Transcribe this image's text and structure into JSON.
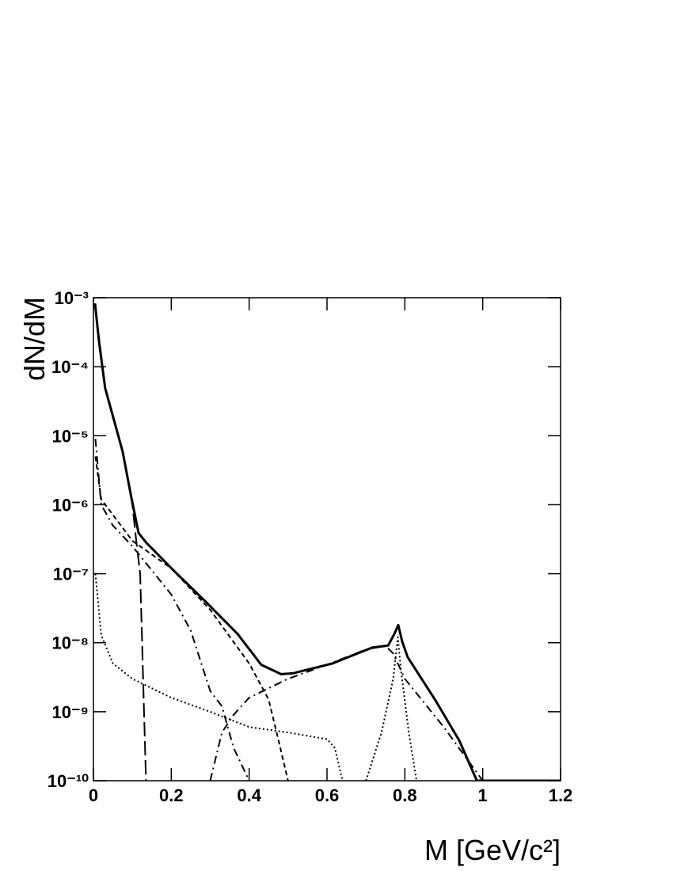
{
  "chart_data": {
    "type": "line",
    "x_label": "M [GeV/c²]",
    "y_label": "dN/dM",
    "log_y": true,
    "xlim": [
      0,
      1.2
    ],
    "ylim": [
      1e-10,
      0.001
    ],
    "xticks": [
      0,
      0.2,
      0.4,
      0.6,
      0.8,
      1,
      1.2
    ],
    "yticks": [
      {
        "value": 1e-10,
        "label": "10⁻¹⁰"
      },
      {
        "value": 1e-09,
        "label": "10⁻⁹"
      },
      {
        "value": 1e-08,
        "label": "10⁻⁸"
      },
      {
        "value": 1e-07,
        "label": "10⁻⁷"
      },
      {
        "value": 1e-06,
        "label": "10⁻⁶"
      },
      {
        "value": 1e-05,
        "label": "10⁻⁵"
      },
      {
        "value": 0.0001,
        "label": "10⁻⁴"
      },
      {
        "value": 0.001,
        "label": "10⁻³"
      }
    ],
    "series": [
      {
        "color": "#000000",
        "dash": "solid",
        "width": 3,
        "x": [
          0.004,
          0.014,
          0.03,
          0.075,
          0.096,
          0.116,
          0.136,
          0.207,
          0.289,
          0.37,
          0.431,
          0.482,
          0.512,
          0.614,
          0.716,
          0.757,
          0.773,
          0.783,
          0.793,
          0.807,
          0.879,
          0.94,
          0.985,
          1.2
        ],
        "values": [
          0.00083,
          0.00024,
          4.9e-05,
          5.9e-06,
          1.4e-06,
          3.9e-07,
          2.8e-07,
          1.1e-07,
          3.9e-08,
          1.35e-08,
          4.8e-09,
          3.5e-09,
          3.6e-09,
          5e-09,
          8.5e-09,
          9.1e-09,
          1.35e-08,
          1.8e-08,
          1.05e-08,
          6.2e-09,
          1.45e-09,
          3.8e-10,
          1e-10,
          1e-10
        ]
      },
      {
        "color": "#000000",
        "dash": "long-dash",
        "width": 2,
        "x": [
          0.005,
          0.03,
          0.075,
          0.1,
          0.11,
          0.12,
          0.125,
          0.13,
          0.135
        ],
        "values": [
          0.0007,
          5e-05,
          6e-06,
          1e-06,
          3e-07,
          1e-07,
          1e-08,
          1e-09,
          1e-10
        ]
      },
      {
        "color": "#000000",
        "dash": "dash-dot",
        "width": 2,
        "x": [
          0.005,
          0.02,
          0.05,
          0.1,
          0.2,
          0.25,
          0.3,
          0.33,
          0.36,
          0.4
        ],
        "values": [
          9e-06,
          1e-06,
          5e-07,
          2.5e-07,
          5e-08,
          1.5e-08,
          2e-09,
          1.2e-09,
          3e-10,
          1e-10
        ]
      },
      {
        "color": "#000000",
        "dash": "dashed",
        "width": 2,
        "x": [
          0.005,
          0.02,
          0.1,
          0.2,
          0.3,
          0.4,
          0.45,
          0.48,
          0.5
        ],
        "values": [
          5e-06,
          1.2e-06,
          3e-07,
          1.2e-07,
          3e-08,
          5e-09,
          1.5e-09,
          3e-10,
          1e-10
        ]
      },
      {
        "color": "#000000",
        "dash": "dotted",
        "width": 2,
        "x": [
          0.005,
          0.02,
          0.05,
          0.1,
          0.2,
          0.3,
          0.4,
          0.5,
          0.6,
          0.62,
          0.64
        ],
        "values": [
          1e-07,
          1.3e-08,
          5e-09,
          3e-09,
          1.6e-09,
          1e-09,
          6e-10,
          5e-10,
          4e-10,
          3e-10,
          1e-10
        ]
      },
      {
        "color": "#000000",
        "dash": "dotted",
        "width": 2,
        "x": [
          0.7,
          0.74,
          0.77,
          0.782,
          0.79,
          0.81,
          0.83
        ],
        "values": [
          1e-10,
          5e-10,
          3e-09,
          1.2e-08,
          4e-09,
          5e-10,
          1e-10
        ]
      },
      {
        "color": "#000000",
        "dash": "dash-dot",
        "width": 2,
        "x": [
          0.3,
          0.33,
          0.36,
          0.4,
          0.5,
          0.6,
          0.7,
          0.75,
          0.77,
          0.79,
          0.8,
          0.9,
          1.0
        ],
        "values": [
          1e-10,
          5e-10,
          9e-10,
          1.6e-09,
          3e-09,
          4.8e-09,
          8e-09,
          9e-09,
          7e-09,
          4e-09,
          3e-09,
          6e-10,
          1e-10
        ]
      }
    ]
  }
}
